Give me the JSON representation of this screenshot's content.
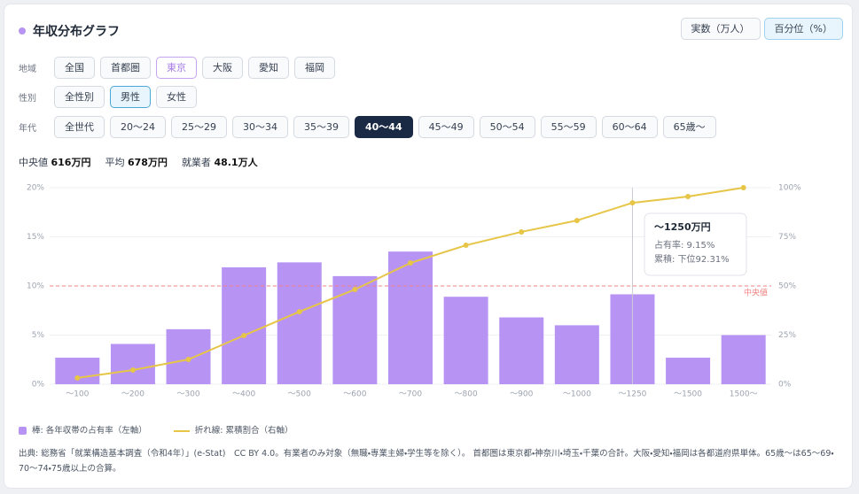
{
  "header": {
    "title": "年収分布グラフ",
    "modes": [
      "実数（万人）",
      "百分位（%）"
    ]
  },
  "filters": [
    {
      "label": "地域",
      "options": [
        "全国",
        "首都圏",
        "東京",
        "大阪",
        "愛知",
        "福岡"
      ]
    },
    {
      "label": "性別",
      "options": [
        "全性別",
        "男性",
        "女性"
      ]
    },
    {
      "label": "年代",
      "options": [
        "全世代",
        "20〜24",
        "25〜29",
        "30〜34",
        "35〜39",
        "40〜44",
        "45〜49",
        "50〜54",
        "55〜59",
        "60〜64",
        "65歳〜"
      ]
    }
  ],
  "stats": [
    {
      "label": "中央値",
      "value": "616万円"
    },
    {
      "label": "平均",
      "value": "678万円"
    },
    {
      "label": "就業者",
      "value": "48.1万人"
    }
  ],
  "chart_data": {
    "type": "bar",
    "categories": [
      "〜100",
      "〜200",
      "〜300",
      "〜400",
      "〜500",
      "〜600",
      "〜700",
      "〜800",
      "〜900",
      "〜1000",
      "〜1250",
      "〜1500",
      "1500〜"
    ],
    "series": [
      {
        "name": "棒: 各年収帯の占有率（左軸）",
        "color": "#b794f4",
        "values": [
          2.7,
          4.1,
          5.6,
          11.9,
          12.4,
          11.0,
          13.5,
          8.9,
          6.8,
          6.0,
          9.15,
          2.7,
          5.0
        ]
      },
      {
        "name": "折れ線: 累積割合（右軸）",
        "color": "#e6c547",
        "type": "line",
        "axis": "y2",
        "values": [
          3.2,
          7.2,
          12.6,
          24.8,
          36.9,
          48.2,
          61.7,
          70.7,
          77.5,
          83.3,
          92.31,
          95.5,
          100
        ]
      }
    ],
    "ylim": [
      0,
      20
    ],
    "yticks": [
      {
        "value": 0,
        "label": "0%"
      },
      {
        "value": 5,
        "label": "5%"
      },
      {
        "value": 10,
        "label": "10%"
      },
      {
        "value": 15,
        "label": "15%"
      },
      {
        "value": 20,
        "label": "20%"
      }
    ],
    "y2lim": [
      0,
      100
    ],
    "y2ticks": [
      {
        "value": 0,
        "label": "0%"
      },
      {
        "value": 25,
        "label": "25%"
      },
      {
        "value": 50,
        "label": "50%"
      },
      {
        "value": 75,
        "label": "75%"
      },
      {
        "value": 100,
        "label": "100%"
      }
    ],
    "grid": true,
    "reference_line": {
      "value": 10,
      "label": "中央値",
      "color": "#f08080"
    },
    "tooltip": {
      "title": "〜1250万円",
      "lines": [
        "占有率: 9.15%",
        "累積: 下位92.31%"
      ]
    }
  },
  "source": "出典: 総務省「就業構造基本調査（令和4年）」(e-Stat)　CC BY 4.0。有業者のみ対象（無職・専業主婦・学生等を除く）。 首都圏は東京都・神奈川・埼玉・千葉の合計。大阪・愛知・福岡は各都道府県単体。65歳〜は65〜69・70〜74・75歳以上の合算。"
}
